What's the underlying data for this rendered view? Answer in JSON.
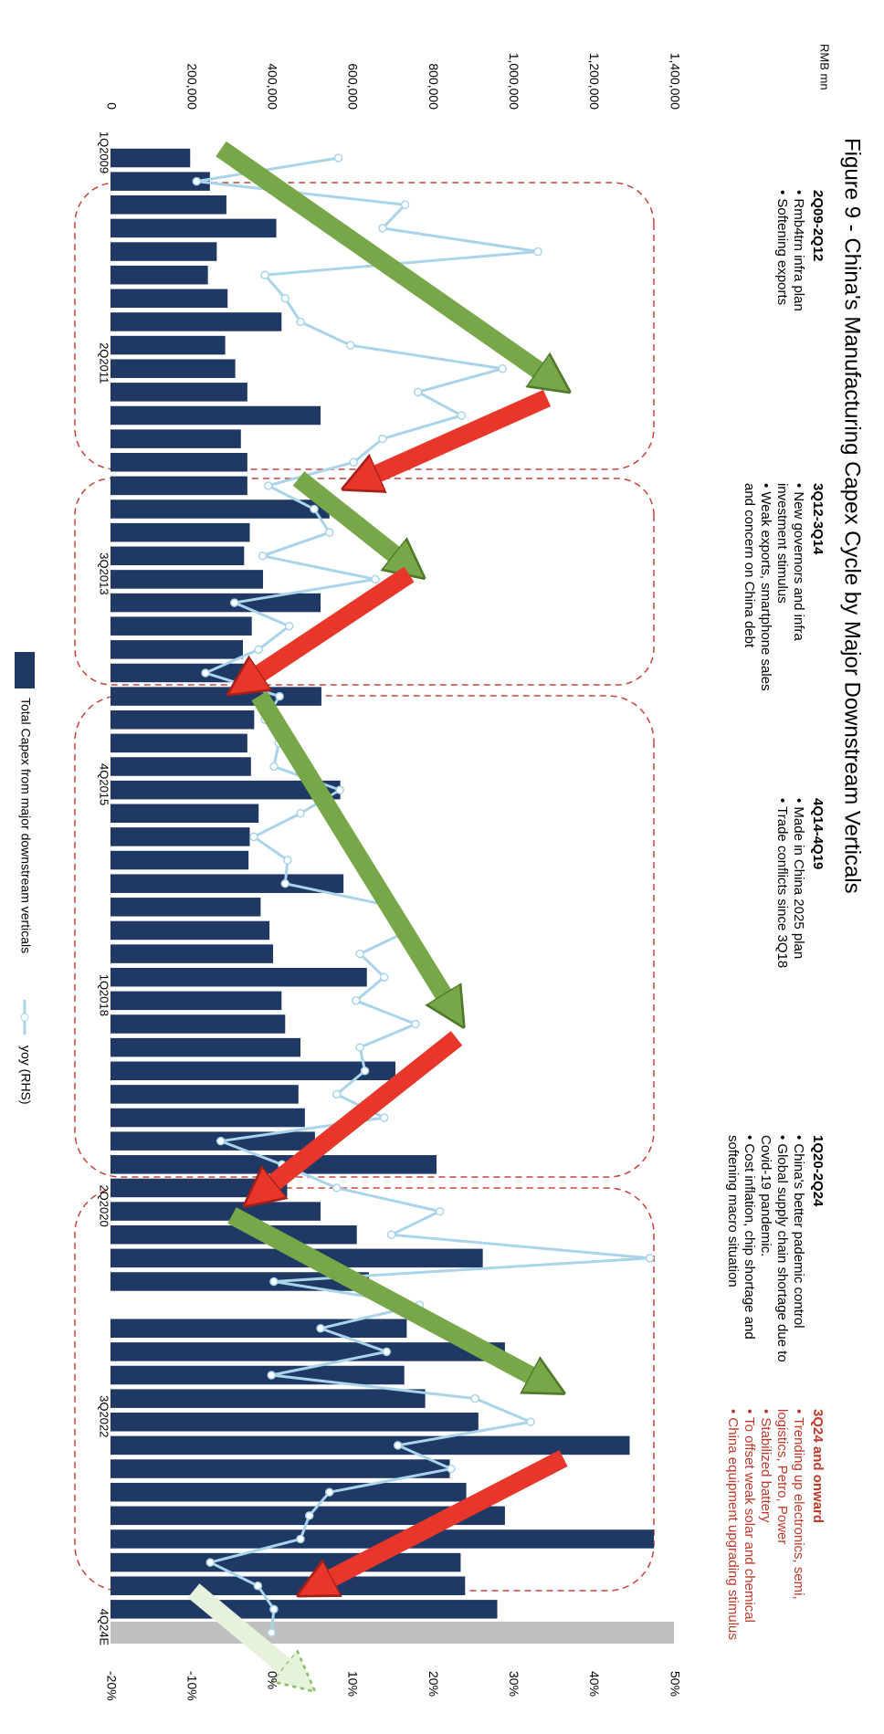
{
  "chart_data": {
    "type": "bar",
    "title": "Figure 9 - China's Manufacturing Capex Cycle by Major Downstream Verticals",
    "y_label": "RMB mn",
    "categories": [
      "1Q2009",
      null,
      null,
      null,
      null,
      null,
      null,
      null,
      null,
      "2Q2011",
      null,
      null,
      null,
      null,
      null,
      null,
      null,
      null,
      "3Q2013",
      null,
      null,
      null,
      null,
      null,
      null,
      null,
      null,
      "4Q2015",
      null,
      null,
      null,
      null,
      null,
      null,
      null,
      null,
      "1Q2018",
      null,
      null,
      null,
      null,
      null,
      null,
      null,
      null,
      "2Q2020",
      null,
      null,
      null,
      null,
      null,
      null,
      null,
      null,
      "3Q2022",
      null,
      null,
      null,
      null,
      null,
      null,
      null,
      null,
      "4Q24E"
    ],
    "series": [
      {
        "name": "Total Capex from major downstream verticals",
        "type": "bar",
        "color": "#1f3864",
        "values": [
          198000,
          247000,
          288000,
          412000,
          264000,
          242000,
          291000,
          425000,
          285000,
          310000,
          340000,
          522000,
          324000,
          340000,
          340000,
          544000,
          346000,
          332000,
          379000,
          522000,
          351000,
          329000,
          346000,
          524000,
          357000,
          340000,
          349000,
          571000,
          368000,
          346000,
          343000,
          579000,
          373000,
          395000,
          404000,
          637000,
          425000,
          434000,
          472000,
          708000,
          467000,
          483000,
          508000,
          810000,
          439000,
          522000,
          612000,
          925000,
          642000,
          null,
          736000,
          980000,
          730000,
          782000,
          914000,
          1290000,
          843000,
          884000,
          980000,
          1350000,
          870000,
          881000,
          961000,
          null
        ]
      },
      {
        "name": "yoy (RHS)",
        "type": "line",
        "axis": "y2",
        "color": "#a9d4ea",
        "values": [
          8.3,
          -9.3,
          16.6,
          13.8,
          33.1,
          -0.8,
          1.7,
          3.6,
          9.8,
          28.7,
          18.2,
          23.6,
          13.8,
          10.2,
          -0.4,
          5.3,
          7.2,
          -1.1,
          12.9,
          -4.6,
          2.2,
          -1.6,
          -8.2,
          1.0,
          -0.8,
          0.9,
          0.3,
          8.5,
          3.6,
          -2.2,
          2.0,
          1.7,
          15.4,
          17.1,
          11.0,
          14.0,
          10.5,
          17.9,
          11.0,
          11.6,
          8.1,
          14.0,
          -6.3,
          1.3,
          8.1,
          20.9,
          14.9,
          47.0,
          0.3,
          18.4,
          6.1,
          14.3,
          0.0,
          25.3,
          32.2,
          15.7,
          22.3,
          7.2,
          4.7,
          3.6,
          -7.6,
          -1.7,
          0.3,
          0.0
        ]
      }
    ],
    "ylim": [
      0,
      1400000
    ],
    "yticks": [
      0,
      {
        "value": 200000,
        "label": "200,000"
      },
      {
        "value": 400000,
        "label": "400,000"
      },
      {
        "value": 600000,
        "label": "600,000"
      },
      {
        "value": 800000,
        "label": "800,000"
      },
      {
        "value": 1000000,
        "label": "1,000,000"
      },
      {
        "value": 1200000,
        "label": "1,200,000"
      },
      {
        "value": 1400000,
        "label": "1,400,000"
      }
    ],
    "y2lim": [
      -20,
      50
    ],
    "y2ticks": [
      {
        "value": -20,
        "label": "-20%"
      },
      {
        "value": -10,
        "label": "-10%"
      },
      {
        "value": 0,
        "label": "0%"
      },
      {
        "value": 10,
        "label": "10%"
      },
      {
        "value": 20,
        "label": "20%"
      },
      {
        "value": 30,
        "label": "30%"
      },
      {
        "value": 40,
        "label": "40%"
      },
      {
        "value": 50,
        "label": "50%"
      }
    ],
    "grid": false,
    "annotations": [
      {
        "title": "2Q09-2Q12",
        "color": "#000000",
        "lines": [
          "• Rmb4trn infra plan",
          "• Softening exports"
        ]
      },
      {
        "title": "3Q12-3Q14",
        "color": "#000000",
        "lines": [
          "• New governors and infra",
          "investment stimulus",
          "• Weak exports, smartphone sales",
          "and concern on China debt"
        ]
      },
      {
        "title": "4Q14-4Q19",
        "color": "#000000",
        "lines": [
          "• Made in China 2025 plan",
          "• Trade conflicts since 3Q18"
        ]
      },
      {
        "title": "1Q20-2Q24",
        "color": "#000000",
        "lines": [
          "• China's better pademic control",
          "• Global supply chain shortage due to",
          "Covid-19 pandemic.",
          "• Cost inflation, chip shortage and",
          "softening macro situation"
        ]
      },
      {
        "title": "3Q24 and onward",
        "color": "#c0392b",
        "lines": [
          "• Trending up electronics, semi,",
          "logistics, Petro, Power",
          "• Stabilized battery",
          "• To offset weak solar and chemical",
          "• China equipment upgrading stimulus"
        ]
      }
    ]
  }
}
